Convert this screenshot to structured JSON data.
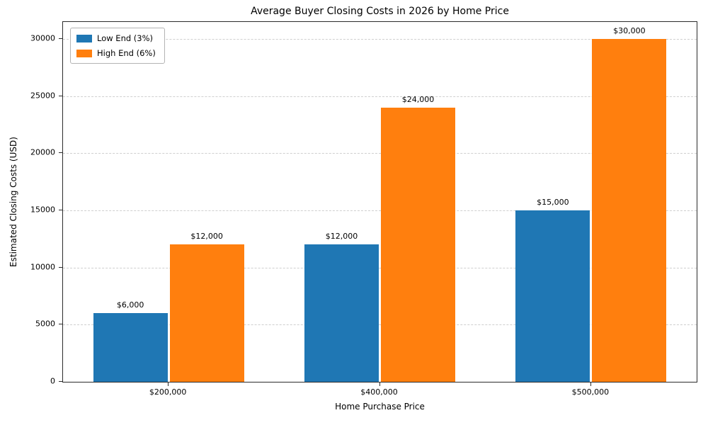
{
  "chart_data": {
    "type": "bar",
    "title": "Average Buyer Closing Costs in 2026 by Home Price",
    "xlabel": "Home Purchase Price",
    "ylabel": "Estimated Closing Costs (USD)",
    "categories": [
      "$200,000",
      "$400,000",
      "$500,000"
    ],
    "series": [
      {
        "name": "Low End (3%)",
        "color": "#1f77b4",
        "values": [
          6000,
          12000,
          15000
        ],
        "labels": [
          "$6,000",
          "$12,000",
          "$15,000"
        ]
      },
      {
        "name": "High End (6%)",
        "color": "#ff7f0e",
        "values": [
          12000,
          24000,
          30000
        ],
        "labels": [
          "$12,000",
          "$24,000",
          "$30,000"
        ]
      }
    ],
    "yticks": [
      0,
      5000,
      10000,
      15000,
      20000,
      25000,
      30000
    ],
    "ylim": [
      0,
      31500
    ],
    "grid": "horizontal-dashed",
    "legend_position": "top-left"
  }
}
